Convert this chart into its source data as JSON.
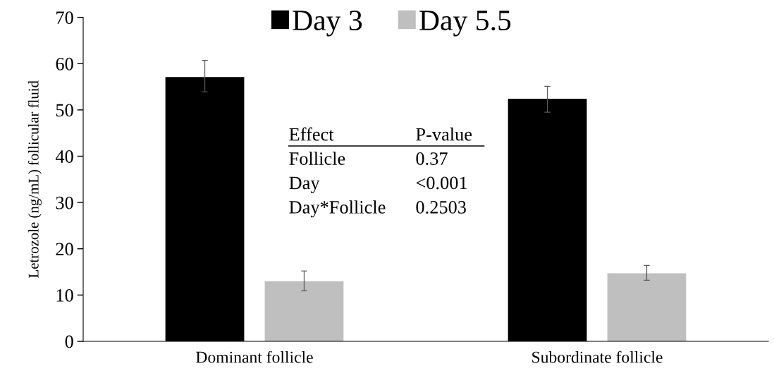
{
  "chart_data": {
    "type": "bar",
    "ylabel": "Letrozole (ng/mL) follicular fluid",
    "categories": [
      "Dominant follicle",
      "Subordinate follicle"
    ],
    "series": [
      {
        "name": "Day 3",
        "color": "#000000",
        "values": [
          57.1,
          52.4
        ],
        "errors": [
          [
            53.9,
            60.7
          ],
          [
            49.5,
            55.1
          ]
        ]
      },
      {
        "name": "Day 5.5",
        "color": "#bfbfbf",
        "values": [
          13.0,
          14.7
        ],
        "errors": [
          [
            10.9,
            15.2
          ],
          [
            13.2,
            16.4
          ]
        ]
      }
    ],
    "ylim": [
      0,
      70
    ],
    "yticks": [
      0,
      10,
      20,
      30,
      40,
      50,
      60,
      70
    ],
    "grid": false,
    "legend": "top",
    "annotations": [
      "Effect",
      "P-value",
      "Follicle",
      "0.37",
      "Day",
      "<0.001",
      "Day*Follicle",
      "0.2503"
    ]
  }
}
